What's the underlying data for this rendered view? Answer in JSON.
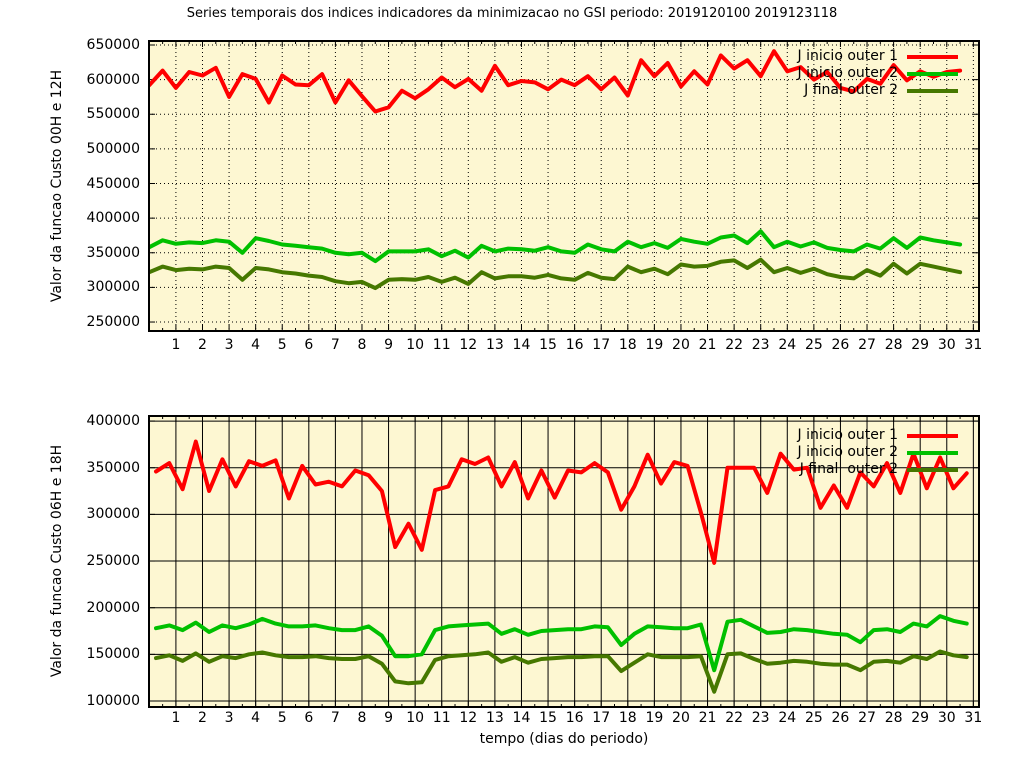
{
  "title": "Series temporais dos indices indicadores da minimizacao no GSI periodo: 2019120100 2019123118",
  "xlabel": "tempo (dias do periodo)",
  "colors": {
    "background": "#ffffff",
    "plot_background": "#fdf7d2",
    "frame": "#000000",
    "grid": "#000000",
    "series_red": "#ff0000",
    "series_green": "#00c000",
    "series_darkgreen": "#467800"
  },
  "chart_data": [
    {
      "type": "line",
      "ylabel": "Valor da funcao Custo 00H e 12H",
      "grid": "dotted",
      "legend_position": "top-right-inside",
      "xlim": [
        -0.05,
        31.25
      ],
      "ylim": [
        235600,
        657200
      ],
      "x_start": 0.0,
      "x_step": 0.5,
      "xticks": [
        1,
        2,
        3,
        4,
        5,
        6,
        7,
        8,
        9,
        10,
        11,
        12,
        13,
        14,
        15,
        16,
        17,
        18,
        19,
        20,
        21,
        22,
        23,
        24,
        25,
        26,
        27,
        28,
        29,
        30,
        31
      ],
      "yticks": [
        250000,
        300000,
        350000,
        400000,
        450000,
        500000,
        550000,
        600000,
        650000
      ],
      "series": [
        {
          "name": "J inicio outer 1",
          "color": "#ff0000",
          "values": [
            592000,
            613000,
            588000,
            611000,
            606000,
            617000,
            575000,
            608000,
            601000,
            567000,
            606000,
            593000,
            592000,
            608000,
            567000,
            599000,
            576000,
            554000,
            560000,
            584000,
            573000,
            586000,
            603000,
            589000,
            601000,
            584000,
            620000,
            592000,
            598000,
            596000,
            586000,
            600000,
            592000,
            605000,
            586000,
            603000,
            577000,
            628000,
            605000,
            624000,
            590000,
            612000,
            593000,
            635000,
            616000,
            628000,
            605000,
            641000,
            612000,
            618000,
            600000,
            611000,
            588000,
            583000,
            601000,
            594000,
            621000,
            599000,
            612000,
            604000,
            611000,
            613000
          ]
        },
        {
          "name": "J inicio outer 2",
          "color": "#00c000",
          "values": [
            358000,
            368000,
            363000,
            365000,
            364000,
            368000,
            366000,
            350000,
            371000,
            367000,
            362000,
            360000,
            358000,
            356000,
            350000,
            348000,
            350000,
            338000,
            352000,
            352000,
            352000,
            355000,
            345000,
            353000,
            343000,
            360000,
            352000,
            356000,
            355000,
            353000,
            358000,
            352000,
            350000,
            362000,
            355000,
            352000,
            366000,
            358000,
            364000,
            357000,
            370000,
            366000,
            363000,
            372000,
            375000,
            364000,
            381000,
            358000,
            366000,
            359000,
            365000,
            357000,
            354000,
            352000,
            362000,
            356000,
            371000,
            357000,
            372000,
            368000,
            365000,
            362000
          ]
        },
        {
          "name": "J final outer 2",
          "color": "#467800",
          "values": [
            322000,
            330000,
            325000,
            327000,
            326000,
            330000,
            328000,
            311000,
            328000,
            326000,
            322000,
            320000,
            317000,
            315000,
            309000,
            306000,
            308000,
            299000,
            311000,
            312000,
            311000,
            315000,
            308000,
            314000,
            305000,
            322000,
            313000,
            316000,
            316000,
            314000,
            318000,
            313000,
            311000,
            321000,
            314000,
            312000,
            330000,
            322000,
            327000,
            319000,
            333000,
            330000,
            331000,
            337000,
            339000,
            328000,
            340000,
            322000,
            328000,
            321000,
            327000,
            319000,
            315000,
            313000,
            325000,
            317000,
            334000,
            320000,
            334000,
            330000,
            326000,
            322000
          ]
        }
      ]
    },
    {
      "type": "line",
      "ylabel": "Valor da funcao Custo 06H e 18H",
      "grid": "solid",
      "legend_position": "top-right-inside",
      "xlim": [
        -0.05,
        31.25
      ],
      "ylim": [
        92500,
        406500
      ],
      "x_start": 0.25,
      "x_step": 0.5,
      "xticks": [
        1,
        2,
        3,
        4,
        5,
        6,
        7,
        8,
        9,
        10,
        11,
        12,
        13,
        14,
        15,
        16,
        17,
        18,
        19,
        20,
        21,
        22,
        23,
        24,
        25,
        26,
        27,
        28,
        29,
        30,
        31
      ],
      "yticks": [
        100000,
        150000,
        200000,
        250000,
        300000,
        350000,
        400000
      ],
      "series": [
        {
          "name": "J inicio outer 1",
          "color": "#ff0000",
          "values": [
            346000,
            355000,
            327000,
            378000,
            325000,
            359000,
            330000,
            357000,
            352000,
            358000,
            317000,
            352000,
            332000,
            335000,
            330000,
            347000,
            342000,
            325000,
            265000,
            290000,
            262000,
            326000,
            330000,
            359000,
            354000,
            361000,
            330000,
            356000,
            317000,
            347000,
            318000,
            347000,
            345000,
            355000,
            345000,
            305000,
            330000,
            364000,
            333000,
            356000,
            352000,
            302000,
            248000,
            350000,
            350000,
            350000,
            323000,
            365000,
            348000,
            350000,
            307000,
            331000,
            307000,
            345000,
            330000,
            355000,
            323000,
            365000,
            328000,
            361000,
            328000,
            344000
          ]
        },
        {
          "name": "J inicio outer 2",
          "color": "#00c000",
          "values": [
            178000,
            181000,
            176000,
            184000,
            174000,
            181000,
            178000,
            182000,
            188000,
            183000,
            180000,
            180000,
            181000,
            178000,
            176000,
            176000,
            180000,
            170000,
            148000,
            148000,
            150000,
            176000,
            180000,
            181000,
            182000,
            183000,
            172000,
            177000,
            171000,
            175000,
            176000,
            177000,
            177000,
            180000,
            179000,
            160000,
            172000,
            180000,
            179000,
            178000,
            178000,
            182000,
            133000,
            185000,
            187000,
            180000,
            173000,
            174000,
            177000,
            176000,
            174000,
            172000,
            171000,
            163000,
            176000,
            177000,
            174000,
            183000,
            180000,
            191000,
            186000,
            183000
          ]
        },
        {
          "name": "J final  outer 2",
          "color": "#467800",
          "values": [
            146000,
            149000,
            143000,
            151000,
            142000,
            148000,
            146000,
            150000,
            152000,
            149000,
            147000,
            147000,
            148000,
            146000,
            145000,
            145000,
            148000,
            140000,
            121000,
            119000,
            120000,
            144000,
            148000,
            149000,
            150000,
            152000,
            142000,
            147000,
            141000,
            145000,
            146000,
            147000,
            147000,
            148000,
            148000,
            132000,
            141000,
            150000,
            147000,
            147000,
            147000,
            148000,
            110000,
            150000,
            151000,
            145000,
            140000,
            141000,
            143000,
            142000,
            140000,
            139000,
            139000,
            133000,
            142000,
            143000,
            141000,
            148000,
            145000,
            153000,
            149000,
            147000
          ]
        }
      ]
    }
  ]
}
